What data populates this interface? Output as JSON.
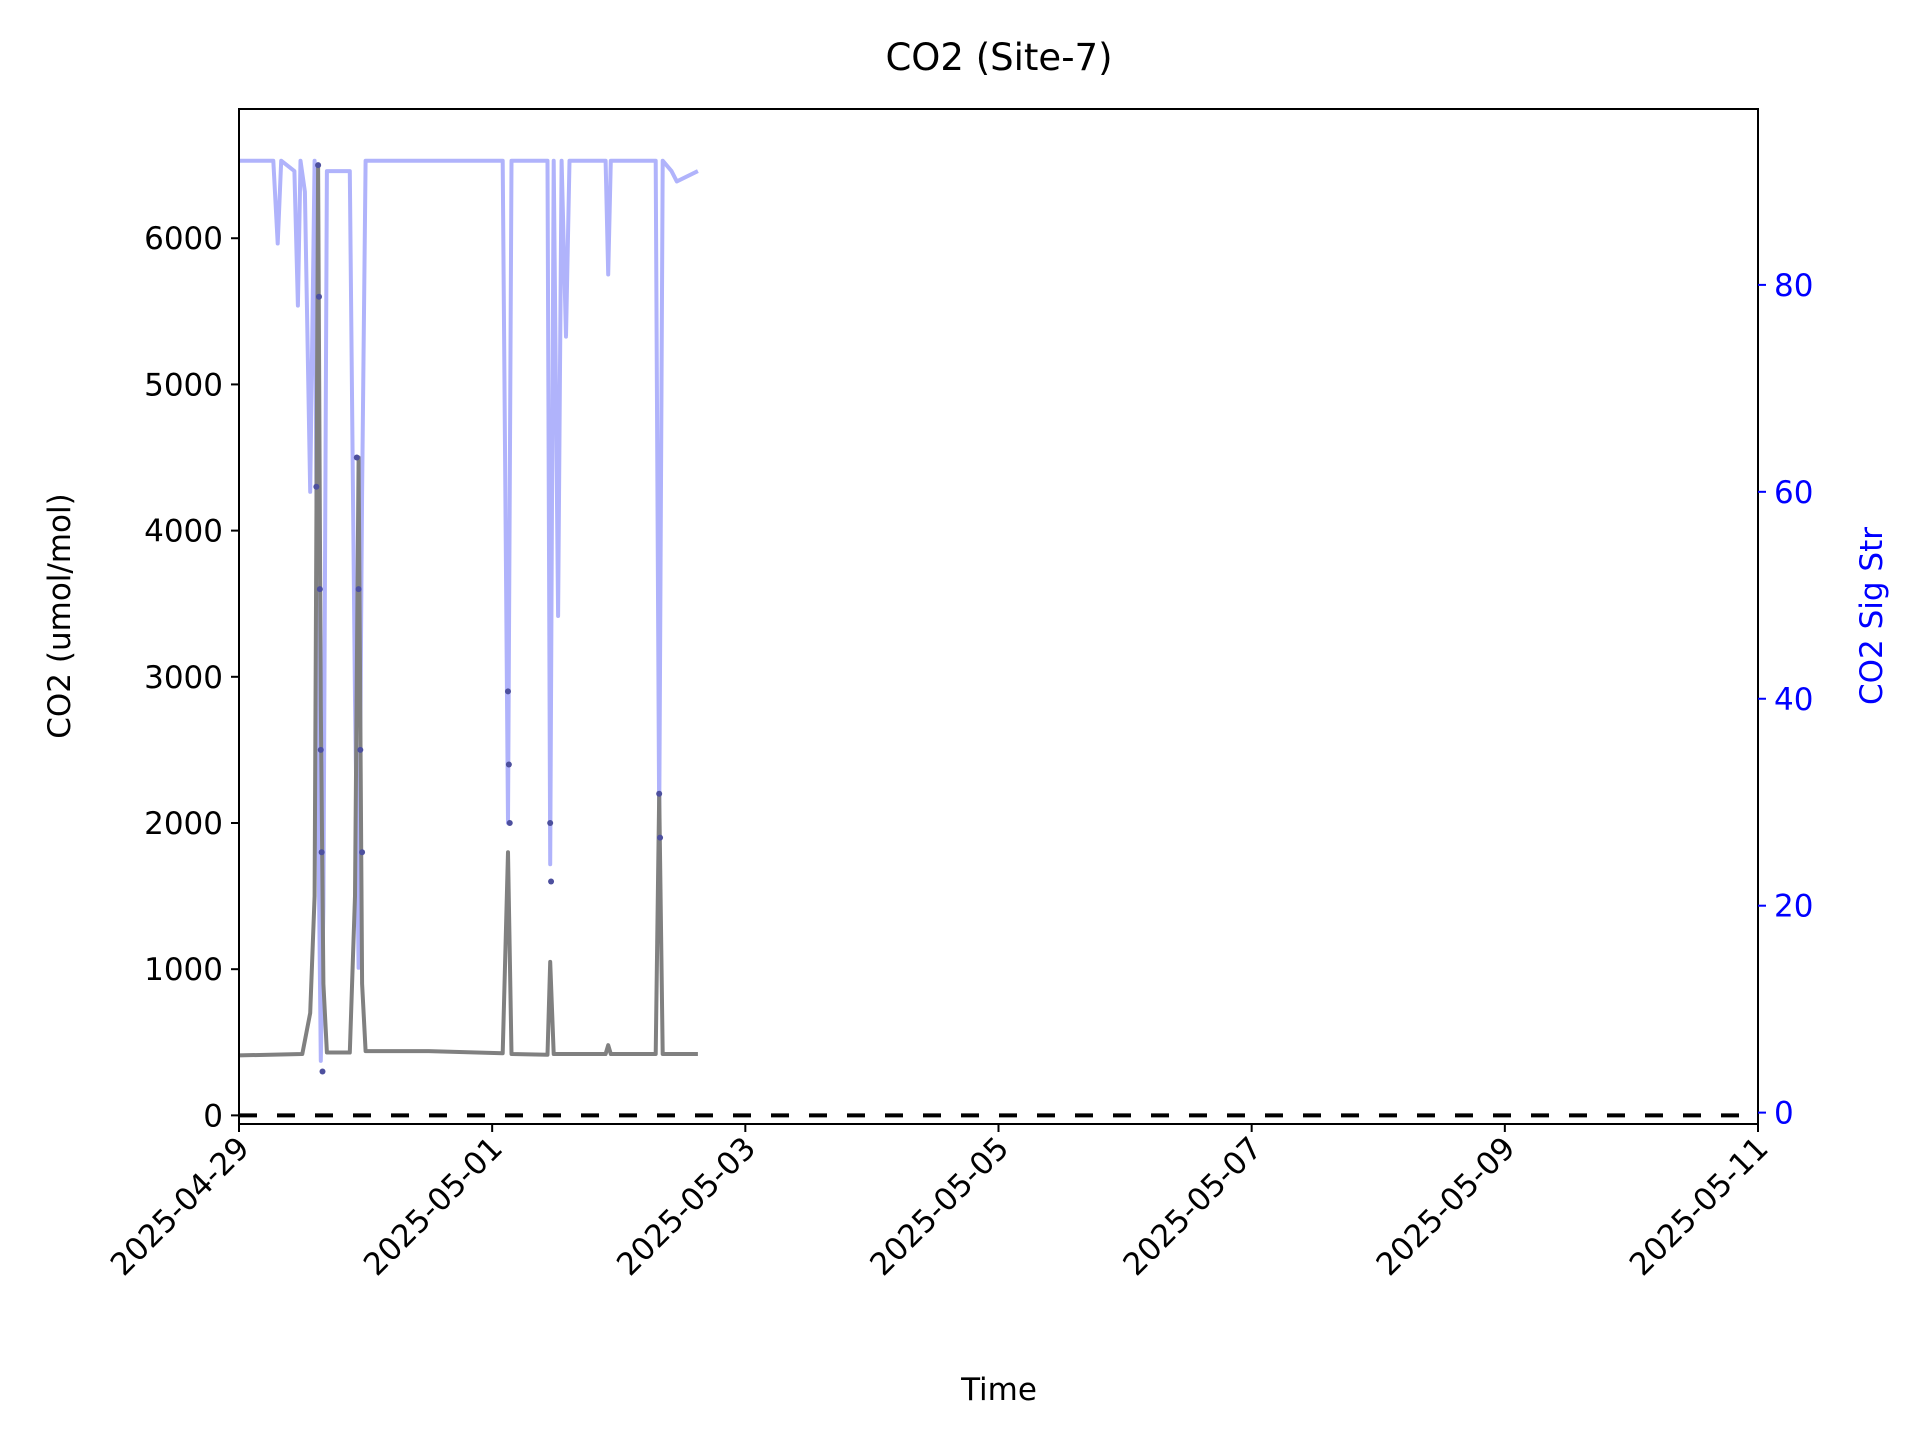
{
  "chart_data": {
    "type": "line",
    "title": "CO2 (Site-7)",
    "x_label": "Time",
    "y_label": "CO2 (umol/mol)",
    "y2_label": "CO2 Sig Str",
    "y2_color": "#0000ff",
    "xlim": [
      "2025-04-29",
      "2025-05-11"
    ],
    "xticks": [
      "2025-04-29",
      "2025-05-01",
      "2025-05-03",
      "2025-05-05",
      "2025-05-07",
      "2025-05-09",
      "2025-05-11"
    ],
    "ylim": [
      -59,
      6884
    ],
    "yticks": [
      0,
      1000,
      2000,
      3000,
      4000,
      5000,
      6000
    ],
    "y2lim": [
      -1.1,
      97
    ],
    "y2ticks": [
      0,
      20,
      40,
      60,
      80
    ],
    "reference_line": {
      "y": 0,
      "color": "#000000",
      "style": "dashed"
    },
    "series": [
      {
        "color": "#b0b3fb",
        "style": "line",
        "axis": "y2",
        "x": [
          "2025-04-29T00:00",
          "2025-04-29T06:30",
          "2025-04-29T07:20",
          "2025-04-29T08:00",
          "2025-04-29T10:30",
          "2025-04-29T11:10",
          "2025-04-29T11:40",
          "2025-04-29T12:30",
          "2025-04-29T13:30",
          "2025-04-29T14:20",
          "2025-04-29T15:00",
          "2025-04-29T15:30",
          "2025-04-29T16:00",
          "2025-04-29T16:40",
          "2025-04-29T21:00",
          "2025-04-29T22:00",
          "2025-04-29T22:40",
          "2025-04-29T23:20",
          "2025-04-30T00:00",
          "2025-04-30T12:00",
          "2025-05-01T02:00",
          "2025-05-01T03:00",
          "2025-05-01T03:40",
          "2025-05-01T10:30",
          "2025-05-01T11:00",
          "2025-05-01T11:40",
          "2025-05-01T12:30",
          "2025-05-01T13:10",
          "2025-05-01T14:00",
          "2025-05-01T14:40",
          "2025-05-01T21:30",
          "2025-05-01T22:00",
          "2025-05-01T22:30",
          "2025-05-02T07:00",
          "2025-05-02T07:40",
          "2025-05-02T08:20",
          "2025-05-02T10:00",
          "2025-05-02T11:00",
          "2025-05-02T15:00"
        ],
        "values": [
          92,
          92,
          84,
          92,
          91,
          78,
          92,
          89,
          60,
          92,
          30,
          5,
          20,
          91,
          91,
          40,
          14,
          60,
          92,
          92,
          92,
          28,
          92,
          92,
          24,
          92,
          48,
          92,
          75,
          92,
          92,
          81,
          92,
          92,
          28,
          92,
          91,
          90,
          91
        ]
      },
      {
        "color": "#808080",
        "style": "line",
        "axis": "y",
        "x": [
          "2025-04-29T00:00",
          "2025-04-29T12:00",
          "2025-04-29T13:30",
          "2025-04-29T14:20",
          "2025-04-29T15:00",
          "2025-04-29T15:30",
          "2025-04-29T16:00",
          "2025-04-29T16:40",
          "2025-04-29T21:00",
          "2025-04-29T22:00",
          "2025-04-29T22:40",
          "2025-04-29T23:20",
          "2025-04-30T00:00",
          "2025-04-30T12:00",
          "2025-05-01T02:00",
          "2025-05-01T03:00",
          "2025-05-01T03:40",
          "2025-05-01T10:30",
          "2025-05-01T11:00",
          "2025-05-01T11:40",
          "2025-05-01T21:30",
          "2025-05-01T22:00",
          "2025-05-01T22:30",
          "2025-05-02T07:00",
          "2025-05-02T07:40",
          "2025-05-02T08:20",
          "2025-05-02T15:00"
        ],
        "values": [
          410,
          420,
          700,
          1500,
          6500,
          2800,
          900,
          430,
          430,
          1500,
          4500,
          900,
          440,
          440,
          425,
          1800,
          420,
          415,
          1050,
          420,
          420,
          480,
          420,
          420,
          2200,
          420,
          420
        ]
      },
      {
        "color": "#4d509e",
        "style": "points",
        "axis": "y",
        "x": [
          "2025-04-29T14:40",
          "2025-04-29T15:00",
          "2025-04-29T15:10",
          "2025-04-29T15:20",
          "2025-04-29T15:30",
          "2025-04-29T15:40",
          "2025-04-29T15:50",
          "2025-04-29T22:20",
          "2025-04-29T22:40",
          "2025-04-29T23:00",
          "2025-04-29T23:20",
          "2025-05-01T03:00",
          "2025-05-01T03:10",
          "2025-05-01T03:20",
          "2025-05-01T11:00",
          "2025-05-01T11:10",
          "2025-05-02T07:40",
          "2025-05-02T07:50"
        ],
        "values": [
          4300,
          6500,
          5600,
          3600,
          2500,
          1800,
          300,
          4500,
          3600,
          2500,
          1800,
          2900,
          2400,
          2000,
          2000,
          1600,
          2200,
          1900
        ]
      }
    ]
  }
}
